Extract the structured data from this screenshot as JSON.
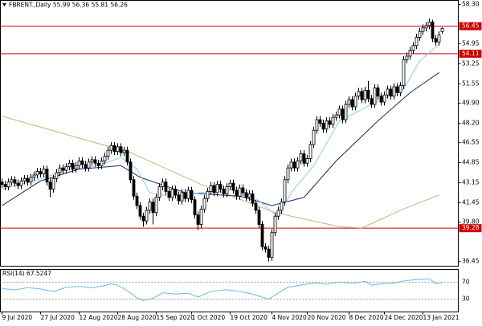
{
  "chart_data": {
    "type": "candlestick",
    "symbol": "FBRENT.,Daily",
    "up_color": "#ffffff",
    "down_color": "#000000",
    "ohlc": [
      [
        43.2,
        43.5,
        42.7,
        43.0
      ],
      [
        43.0,
        43.3,
        42.5,
        42.8
      ],
      [
        42.8,
        43.5,
        42.5,
        43.2
      ],
      [
        43.2,
        43.7,
        42.9,
        43.4
      ],
      [
        43.4,
        43.7,
        42.8,
        43.1
      ],
      [
        43.1,
        43.4,
        42.6,
        42.9
      ],
      [
        42.9,
        43.6,
        42.6,
        43.3
      ],
      [
        43.3,
        43.8,
        43.0,
        43.5
      ],
      [
        43.5,
        43.8,
        42.9,
        43.2
      ],
      [
        43.2,
        43.9,
        42.9,
        43.6
      ],
      [
        43.6,
        44.1,
        43.3,
        43.8
      ],
      [
        43.8,
        44.4,
        43.5,
        44.1
      ],
      [
        44.1,
        44.4,
        43.6,
        43.9
      ],
      [
        43.9,
        44.6,
        43.6,
        44.3
      ],
      [
        44.3,
        44.6,
        42.9,
        43.2
      ],
      [
        43.2,
        43.5,
        41.9,
        42.6
      ],
      [
        42.6,
        43.8,
        42.3,
        43.5
      ],
      [
        43.5,
        44.3,
        43.2,
        44.0
      ],
      [
        44.0,
        44.7,
        43.7,
        44.4
      ],
      [
        44.4,
        44.7,
        43.9,
        44.2
      ],
      [
        44.2,
        44.8,
        43.9,
        44.5
      ],
      [
        44.5,
        45.1,
        44.2,
        44.8
      ],
      [
        44.8,
        45.1,
        44.0,
        44.3
      ],
      [
        44.3,
        44.9,
        44.0,
        44.6
      ],
      [
        44.6,
        45.3,
        44.3,
        45.0
      ],
      [
        45.0,
        45.3,
        44.4,
        44.7
      ],
      [
        44.7,
        45.0,
        44.1,
        44.4
      ],
      [
        44.4,
        45.2,
        44.1,
        44.9
      ],
      [
        44.9,
        45.4,
        44.6,
        45.1
      ],
      [
        45.1,
        45.4,
        44.5,
        44.8
      ],
      [
        44.8,
        45.1,
        44.3,
        44.6
      ],
      [
        44.6,
        45.3,
        44.3,
        45.0
      ],
      [
        45.0,
        45.7,
        44.7,
        45.4
      ],
      [
        45.4,
        46.2,
        45.1,
        45.9
      ],
      [
        45.9,
        46.6,
        45.6,
        46.3
      ],
      [
        46.3,
        46.6,
        45.5,
        45.8
      ],
      [
        45.8,
        46.5,
        45.5,
        46.2
      ],
      [
        46.2,
        46.5,
        45.4,
        45.7
      ],
      [
        45.7,
        46.2,
        45.4,
        45.9
      ],
      [
        45.9,
        46.2,
        44.6,
        44.9
      ],
      [
        44.9,
        45.2,
        43.1,
        43.4
      ],
      [
        43.4,
        43.7,
        41.7,
        42.0
      ],
      [
        42.0,
        42.3,
        40.9,
        41.2
      ],
      [
        41.2,
        41.5,
        40.0,
        40.3
      ],
      [
        40.3,
        40.6,
        39.4,
        39.9
      ],
      [
        39.9,
        41.1,
        39.6,
        40.8
      ],
      [
        40.8,
        41.8,
        40.5,
        41.5
      ],
      [
        41.5,
        41.8,
        39.6,
        40.6
      ],
      [
        40.6,
        42.2,
        40.3,
        41.9
      ],
      [
        41.9,
        43.1,
        41.6,
        42.8
      ],
      [
        42.8,
        43.5,
        42.5,
        43.2
      ],
      [
        43.2,
        43.5,
        42.1,
        42.4
      ],
      [
        42.4,
        42.7,
        41.6,
        41.9
      ],
      [
        41.9,
        42.9,
        41.6,
        42.6
      ],
      [
        42.6,
        42.9,
        41.8,
        42.1
      ],
      [
        42.1,
        42.4,
        41.3,
        41.6
      ],
      [
        41.6,
        42.6,
        41.3,
        42.3
      ],
      [
        42.3,
        42.6,
        41.5,
        41.8
      ],
      [
        41.8,
        42.8,
        41.5,
        42.5
      ],
      [
        42.5,
        42.8,
        41.4,
        41.7
      ],
      [
        41.7,
        42.0,
        40.1,
        40.4
      ],
      [
        40.4,
        40.7,
        39.1,
        39.6
      ],
      [
        39.6,
        41.2,
        39.3,
        40.9
      ],
      [
        40.9,
        42.1,
        40.6,
        41.8
      ],
      [
        41.8,
        42.7,
        41.5,
        42.4
      ],
      [
        42.4,
        43.2,
        42.1,
        42.9
      ],
      [
        42.9,
        43.2,
        42.0,
        42.3
      ],
      [
        42.3,
        43.3,
        42.0,
        43.0
      ],
      [
        43.0,
        43.3,
        42.3,
        42.6
      ],
      [
        42.6,
        42.9,
        41.9,
        42.2
      ],
      [
        42.2,
        43.1,
        41.9,
        42.8
      ],
      [
        42.8,
        43.4,
        42.5,
        43.1
      ],
      [
        43.1,
        43.4,
        42.2,
        42.5
      ],
      [
        42.5,
        42.8,
        41.7,
        42.0
      ],
      [
        42.0,
        43.0,
        41.7,
        42.7
      ],
      [
        42.7,
        43.0,
        42.0,
        42.3
      ],
      [
        42.3,
        42.6,
        41.6,
        41.9
      ],
      [
        41.9,
        42.5,
        41.6,
        42.2
      ],
      [
        42.2,
        42.5,
        41.1,
        41.4
      ],
      [
        41.4,
        41.7,
        40.5,
        40.8
      ],
      [
        40.8,
        41.1,
        39.3,
        39.6
      ],
      [
        39.6,
        39.9,
        37.4,
        37.7
      ],
      [
        37.7,
        38.0,
        37.2,
        37.5
      ],
      [
        37.5,
        37.8,
        36.45,
        36.8
      ],
      [
        36.8,
        39.2,
        36.5,
        38.9
      ],
      [
        38.9,
        40.6,
        38.6,
        40.3
      ],
      [
        40.3,
        41.1,
        40.0,
        40.8
      ],
      [
        40.8,
        41.8,
        40.5,
        41.5
      ],
      [
        41.5,
        43.7,
        41.2,
        43.4
      ],
      [
        43.4,
        44.7,
        43.1,
        44.4
      ],
      [
        44.4,
        45.2,
        44.1,
        44.9
      ],
      [
        44.9,
        45.2,
        44.1,
        44.4
      ],
      [
        44.4,
        45.3,
        44.1,
        45.0
      ],
      [
        45.0,
        45.9,
        44.7,
        45.6
      ],
      [
        45.6,
        45.9,
        44.5,
        44.8
      ],
      [
        44.8,
        45.5,
        44.5,
        45.2
      ],
      [
        45.2,
        46.7,
        44.9,
        46.4
      ],
      [
        46.4,
        47.9,
        46.1,
        47.6
      ],
      [
        47.6,
        48.8,
        47.3,
        48.5
      ],
      [
        48.5,
        48.8,
        47.9,
        48.2
      ],
      [
        48.2,
        48.5,
        47.4,
        47.7
      ],
      [
        47.7,
        48.7,
        47.4,
        48.4
      ],
      [
        48.4,
        48.7,
        47.8,
        48.1
      ],
      [
        48.1,
        49.0,
        47.8,
        48.7
      ],
      [
        48.7,
        49.2,
        48.4,
        48.9
      ],
      [
        48.9,
        49.7,
        48.6,
        49.4
      ],
      [
        49.4,
        49.7,
        48.2,
        48.5
      ],
      [
        48.5,
        50.1,
        48.2,
        49.8
      ],
      [
        49.8,
        50.5,
        49.5,
        50.2
      ],
      [
        50.2,
        50.5,
        49.3,
        49.6
      ],
      [
        49.6,
        50.8,
        49.3,
        50.5
      ],
      [
        50.5,
        51.2,
        50.2,
        50.9
      ],
      [
        50.9,
        51.2,
        49.9,
        50.2
      ],
      [
        50.2,
        51.3,
        49.9,
        51.0
      ],
      [
        51.0,
        51.8,
        50.0,
        50.3
      ],
      [
        50.3,
        50.6,
        49.5,
        49.8
      ],
      [
        49.8,
        51.5,
        49.5,
        51.2
      ],
      [
        51.2,
        51.5,
        50.2,
        50.5
      ],
      [
        50.5,
        50.8,
        49.7,
        50.0
      ],
      [
        50.0,
        50.9,
        49.7,
        50.6
      ],
      [
        50.6,
        51.4,
        50.3,
        51.1
      ],
      [
        51.1,
        51.4,
        50.2,
        50.5
      ],
      [
        50.5,
        51.6,
        50.2,
        51.3
      ],
      [
        51.3,
        51.6,
        50.5,
        50.8
      ],
      [
        50.8,
        51.7,
        50.5,
        51.4
      ],
      [
        51.4,
        53.9,
        51.1,
        53.6
      ],
      [
        53.6,
        54.2,
        53.3,
        53.9
      ],
      [
        53.9,
        54.7,
        53.6,
        54.4
      ],
      [
        54.4,
        55.1,
        54.1,
        54.8
      ],
      [
        54.8,
        55.8,
        54.5,
        55.5
      ],
      [
        55.5,
        56.3,
        55.2,
        56.0
      ],
      [
        56.0,
        56.6,
        55.7,
        56.3
      ],
      [
        56.3,
        56.8,
        56.0,
        56.5
      ],
      [
        56.5,
        57.1,
        56.2,
        56.8
      ],
      [
        56.8,
        57.0,
        55.1,
        55.4
      ],
      [
        55.4,
        55.7,
        54.8,
        55.1
      ],
      [
        55.1,
        56.0,
        54.8,
        55.7
      ],
      [
        55.99,
        56.36,
        55.81,
        56.26
      ]
    ],
    "xlim": [
      -0.5,
      142
    ],
    "xticks": [
      {
        "value": 0,
        "label": "9 Jul 2020"
      },
      {
        "value": 12,
        "label": "27 Jul 2020"
      },
      {
        "value": 24,
        "label": "12 Aug 2020"
      },
      {
        "value": 36,
        "label": "28 Aug 2020"
      },
      {
        "value": 48,
        "label": "15 Sep 2020"
      },
      {
        "value": 59,
        "label": "1 Oct 2020"
      },
      {
        "value": 71,
        "label": "19 Oct 2020"
      },
      {
        "value": 84,
        "label": "4 Nov 2020"
      },
      {
        "value": 95,
        "label": "20 Nov 2020"
      },
      {
        "value": 108,
        "label": "8 Dec 2020"
      },
      {
        "value": 119,
        "label": "24 Dec 2020"
      },
      {
        "value": 131,
        "label": "13 Jan 2021"
      }
    ],
    "ylim": [
      36.05,
      58.64
    ],
    "yticks": [
      {
        "value": 58.3,
        "label": "58.30"
      },
      54.95,
      53.25,
      51.55,
      {
        "value": 49.9,
        "label": "49.90"
      },
      {
        "value": 48.2,
        "label": "48.20"
      },
      46.55,
      44.85,
      43.15,
      41.45,
      {
        "value": 39.8,
        "label": "39.80"
      },
      36.45
    ],
    "levels": [
      {
        "value": 56.45,
        "color": "#d00000"
      },
      {
        "value": 54.11,
        "color": "#d00000"
      },
      {
        "value": 39.28,
        "color": "#d00000"
      }
    ],
    "series": [
      {
        "color": "#c9b27c",
        "x": [
          0,
          40,
          62,
          85,
          105,
          112,
          124,
          136
        ],
        "values": [
          48.8,
          45.7,
          43.0,
          40.6,
          39.4,
          39.3,
          40.8,
          42.1
        ]
      },
      {
        "color": "#1f2a70",
        "x": [
          0,
          12,
          24,
          37,
          43,
          57,
          74,
          84,
          94,
          104,
          117,
          127,
          136
        ],
        "values": [
          41.2,
          43.3,
          44.3,
          44.6,
          43.6,
          42.3,
          42.0,
          41.2,
          41.9,
          45.0,
          48.4,
          50.8,
          52.5
        ]
      },
      {
        "color": "#8fd0e6",
        "x": [
          0,
          10,
          20,
          30,
          37,
          42,
          46,
          52,
          62,
          72,
          80,
          86,
          90,
          97,
          105,
          115,
          125,
          130,
          136
        ],
        "values": [
          42.6,
          43.3,
          44.2,
          44.6,
          45.3,
          44.3,
          42.3,
          42.0,
          42.3,
          42.6,
          41.6,
          40.2,
          42.3,
          44.6,
          48.4,
          49.8,
          51.1,
          53.5,
          54.9
        ]
      }
    ],
    "indicator": {
      "title": "RSI(14)",
      "color": "#6fb8e0",
      "ylim": [
        0,
        100
      ],
      "yticks": [
        70,
        30
      ],
      "x": [
        0,
        4,
        8,
        12,
        16,
        20,
        24,
        28,
        32,
        34,
        36,
        39,
        42,
        44,
        47,
        50,
        54,
        58,
        61,
        65,
        70,
        74,
        78,
        83,
        86,
        89,
        93,
        97,
        101,
        105,
        109,
        113,
        115,
        118,
        122,
        125,
        129,
        133,
        135,
        137
      ],
      "values": [
        55,
        52,
        57,
        54,
        48,
        58,
        60,
        57,
        62,
        66,
        63,
        50,
        33,
        27,
        32,
        45,
        42,
        44,
        35,
        48,
        52,
        48,
        42,
        30,
        45,
        58,
        63,
        68,
        65,
        70,
        67,
        72,
        63,
        66,
        68,
        73,
        76,
        78,
        66,
        67.5247
      ]
    }
  }
}
